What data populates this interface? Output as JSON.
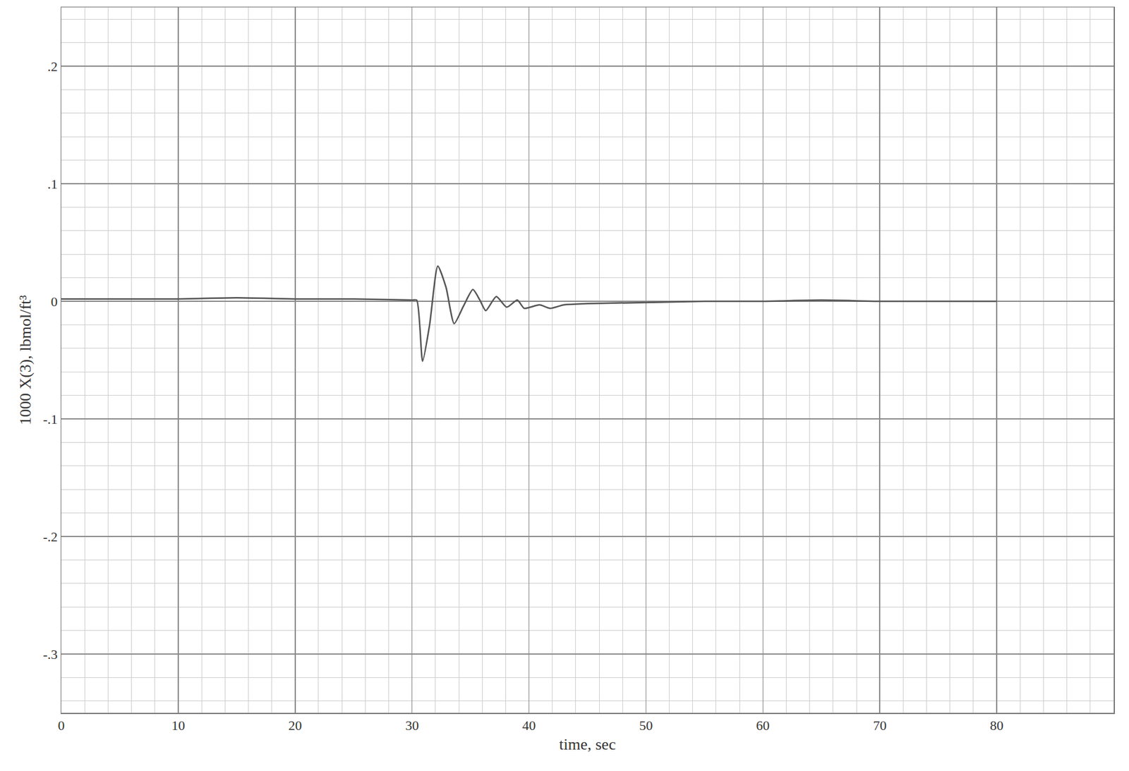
{
  "chart_data": {
    "type": "line",
    "x_label": "time, sec",
    "y_label": "1000 X(3), lbmol/ft³",
    "x": [
      0,
      5,
      10,
      15,
      20,
      25,
      30,
      30.4,
      30.9,
      31.5,
      32.2,
      32.9,
      33.6,
      34.4,
      35.2,
      35.8,
      36.3,
      37.2,
      38.1,
      39.0,
      39.6,
      40.9,
      41.8,
      43,
      45,
      50,
      55,
      60,
      65,
      70,
      75,
      80
    ],
    "series": [
      {
        "name": "X(3)",
        "color": "#555555",
        "values": [
          0.002,
          0.002,
          0.002,
          0.003,
          0.002,
          0.002,
          0.001,
          0.001,
          -0.051,
          -0.02,
          0.03,
          0.012,
          -0.019,
          -0.004,
          0.01,
          0.001,
          -0.008,
          0.004,
          -0.005,
          0.001,
          -0.006,
          -0.003,
          -0.006,
          -0.003,
          -0.002,
          -0.001,
          0.0,
          0.0,
          0.001,
          0.0,
          0.0,
          0.0
        ]
      }
    ],
    "xlim": [
      0,
      90
    ],
    "xticks": [
      0,
      10,
      20,
      30,
      40,
      50,
      60,
      70,
      80
    ],
    "ylim": [
      -0.35,
      0.25
    ],
    "yticks": [
      {
        "value": 0.2,
        "label": ".2"
      },
      {
        "value": 0.1,
        "label": ".1"
      },
      0,
      {
        "value": -0.1,
        "label": "-.1"
      },
      {
        "value": -0.2,
        "label": "-.2"
      },
      {
        "value": -0.3,
        "label": "-.3"
      }
    ],
    "grid": true
  }
}
